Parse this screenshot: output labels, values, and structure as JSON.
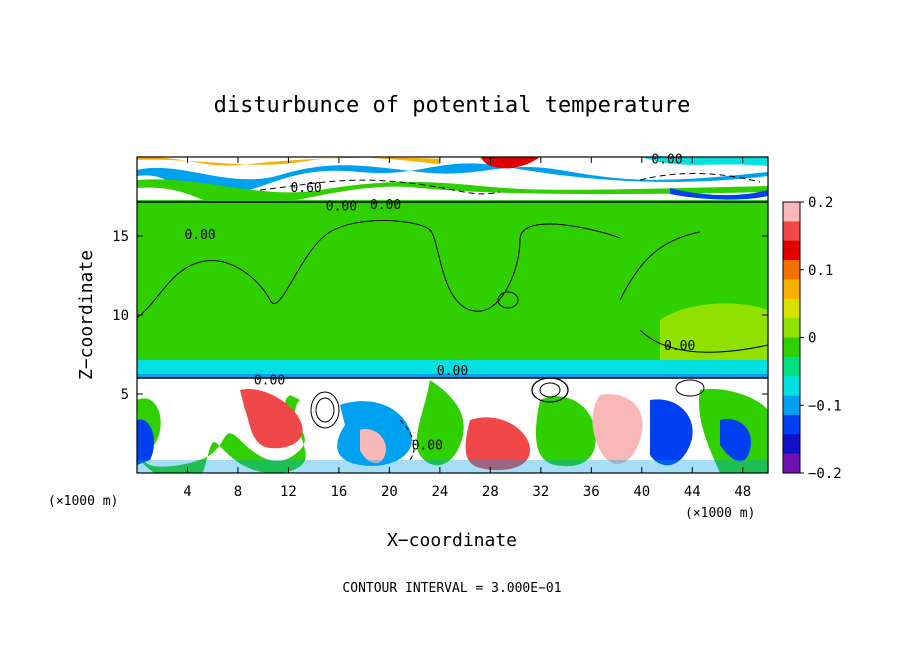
{
  "chart_data": {
    "type": "heatmap",
    "title": "disturbunce of potential temperature",
    "xlabel": "X−coordinate",
    "ylabel": "Z−coordinate",
    "x_unit": "(×1000 m)",
    "z_unit": "(×1000 m)",
    "xlim": [
      0,
      50
    ],
    "zlim": [
      0,
      20
    ],
    "x_ticks": [
      "4",
      "8",
      "12",
      "16",
      "20",
      "24",
      "28",
      "32",
      "36",
      "40",
      "44",
      "48"
    ],
    "z_ticks": [
      "5",
      "10",
      "15"
    ],
    "colorbar": {
      "range": [
        -0.2,
        0.2
      ],
      "tick_labels": [
        "0.2",
        "0.1",
        "0",
        "−0.1",
        "−0.2"
      ],
      "colors": [
        "#f8b8b8",
        "#f04848",
        "#e00000",
        "#f07000",
        "#f8b000",
        "#d8e000",
        "#90e000",
        "#30d000",
        "#00e080",
        "#00e0e0",
        "#00a0f0",
        "#0040f0",
        "#1010c8",
        "#7010b0"
      ]
    },
    "contour_labels": [
      {
        "text": "0.00",
        "x": 42.0,
        "z": 19.6
      },
      {
        "text": "0.60",
        "x": 13.4,
        "z": 17.8
      },
      {
        "text": "0.00",
        "x": 16.2,
        "z": 16.6
      },
      {
        "text": "0.00",
        "x": 19.7,
        "z": 16.7
      },
      {
        "text": "0.00",
        "x": 5.0,
        "z": 14.8
      },
      {
        "text": "0.00",
        "x": 43.0,
        "z": 7.8
      },
      {
        "text": "0.00",
        "x": 10.5,
        "z": 5.6
      },
      {
        "text": "0.00",
        "x": 25.0,
        "z": 6.2
      },
      {
        "text": "0.00",
        "x": 23.0,
        "z": 1.5
      }
    ],
    "footer": "CONTOUR INTERVAL = 3.000E−01"
  }
}
